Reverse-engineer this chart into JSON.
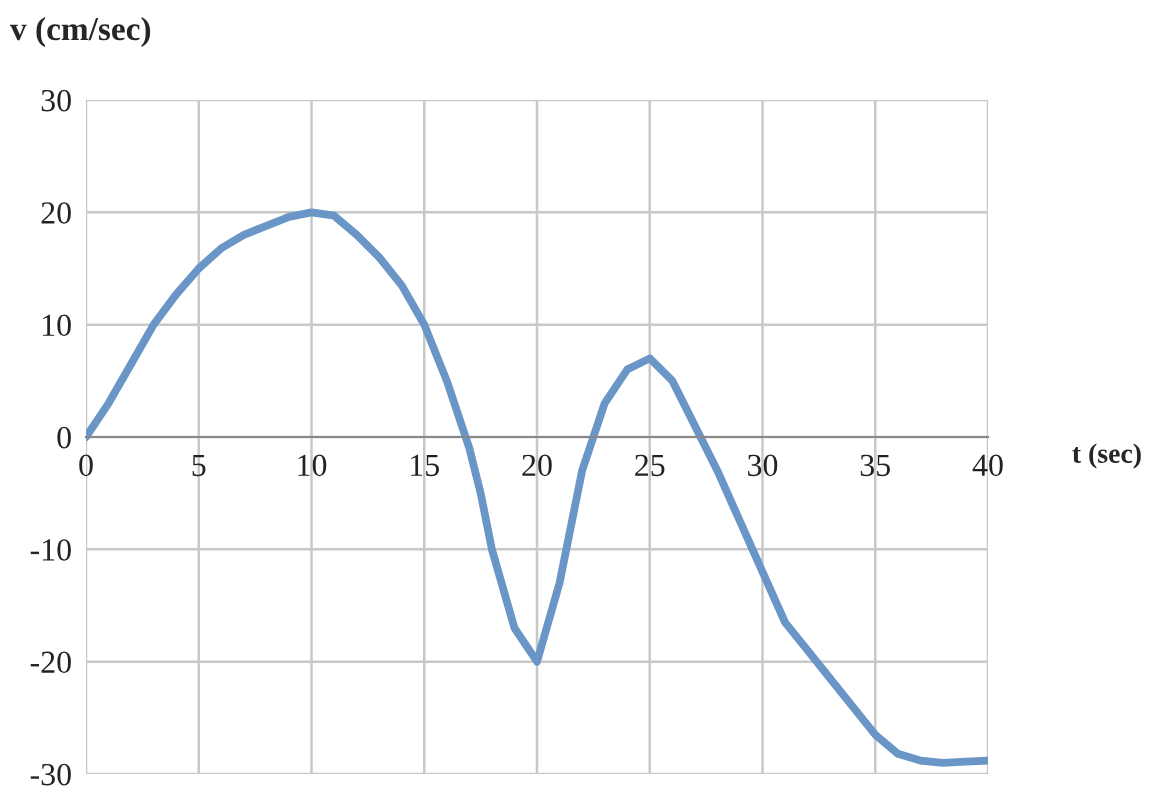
{
  "chart_data": {
    "type": "line",
    "xlabel": "t (sec)",
    "ylabel": "v (cm/sec)",
    "xlim": [
      0,
      40
    ],
    "ylim": [
      -30,
      30
    ],
    "xticks": [
      0,
      5,
      10,
      15,
      20,
      25,
      30,
      35,
      40
    ],
    "yticks": [
      -30,
      -20,
      -10,
      0,
      10,
      20,
      30
    ],
    "grid": true,
    "marker": "none",
    "line_style": "solid",
    "series": [
      {
        "color": "#6a96c7",
        "x": [
          0,
          1,
          2,
          3,
          4,
          5,
          6,
          7,
          8,
          9,
          10,
          11,
          12,
          13,
          14,
          15,
          16,
          17,
          17.5,
          18,
          19,
          20,
          21,
          22,
          23,
          24,
          25,
          26,
          27,
          28,
          29,
          30,
          31,
          32,
          33,
          34,
          35,
          36,
          37,
          38,
          39,
          40
        ],
        "values": [
          0,
          3,
          6.5,
          10,
          12.7,
          15,
          16.8,
          18,
          18.8,
          19.6,
          20,
          19.7,
          18,
          16,
          13.5,
          10,
          5,
          -1,
          -5,
          -10,
          -17,
          -20,
          -13,
          -3,
          3,
          6,
          7,
          5,
          1,
          -3,
          -7.5,
          -12,
          -16.5,
          -19,
          -21.5,
          -24,
          -26.5,
          -28.2,
          -28.8,
          -29,
          -28.9,
          -28.8
        ]
      }
    ]
  }
}
